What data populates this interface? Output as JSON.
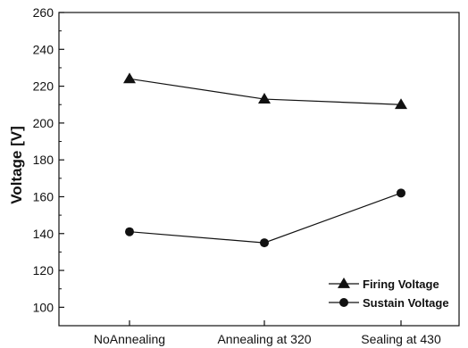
{
  "chart_data": {
    "type": "line",
    "title": "",
    "xlabel": "",
    "ylabel": "Voltage [V]",
    "categories": [
      "NoAnnealing",
      "Annealing at 320",
      "Sealing at 430"
    ],
    "ylim": [
      90,
      260
    ],
    "yticks": [
      100,
      120,
      140,
      160,
      180,
      200,
      220,
      240,
      260
    ],
    "grid": false,
    "legend_position": "bottom-right",
    "series": [
      {
        "name": "Firing Voltage",
        "marker": "triangle",
        "values": [
          224,
          213,
          210
        ]
      },
      {
        "name": "Sustain Voltage",
        "marker": "circle",
        "values": [
          141,
          135,
          162
        ]
      }
    ]
  },
  "colors": {
    "axis": "#111111",
    "firing": "#111111",
    "sustain": "#111111"
  }
}
